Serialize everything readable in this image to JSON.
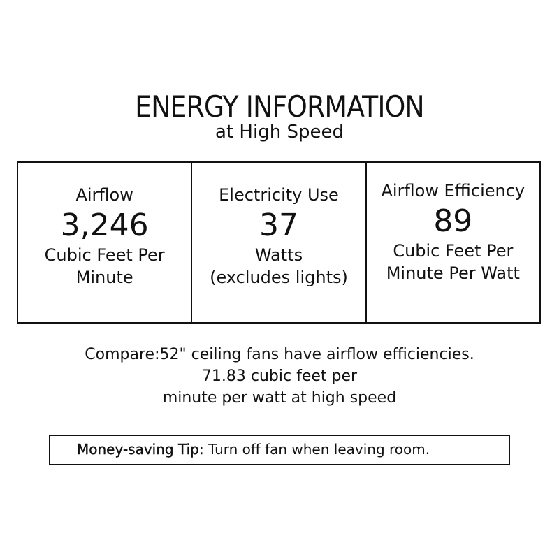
{
  "title": "ENERGY INFORMATION",
  "subtitle": "at High Speed",
  "cells": [
    {
      "label": "Airflow",
      "value": "3,246",
      "unit1": "Cubic Feet Per",
      "unit2": "Minute"
    },
    {
      "label": "Electricity Use",
      "value": "37",
      "unit1": "Watts",
      "unit2": "(excludes lights)"
    },
    {
      "label": "Airflow Efficiency",
      "value": "89",
      "unit1": "Cubic Feet Per",
      "unit2": "Minute Per Watt"
    }
  ],
  "compare": {
    "line1": "Compare:52\" ceiling fans have airflow efficiencies.",
    "line2": "71.83 cubic feet per",
    "line3": "minute per watt at high speed"
  },
  "tip": {
    "label": "Money-saving Tip:",
    "text": "Turn off fan when leaving room."
  }
}
